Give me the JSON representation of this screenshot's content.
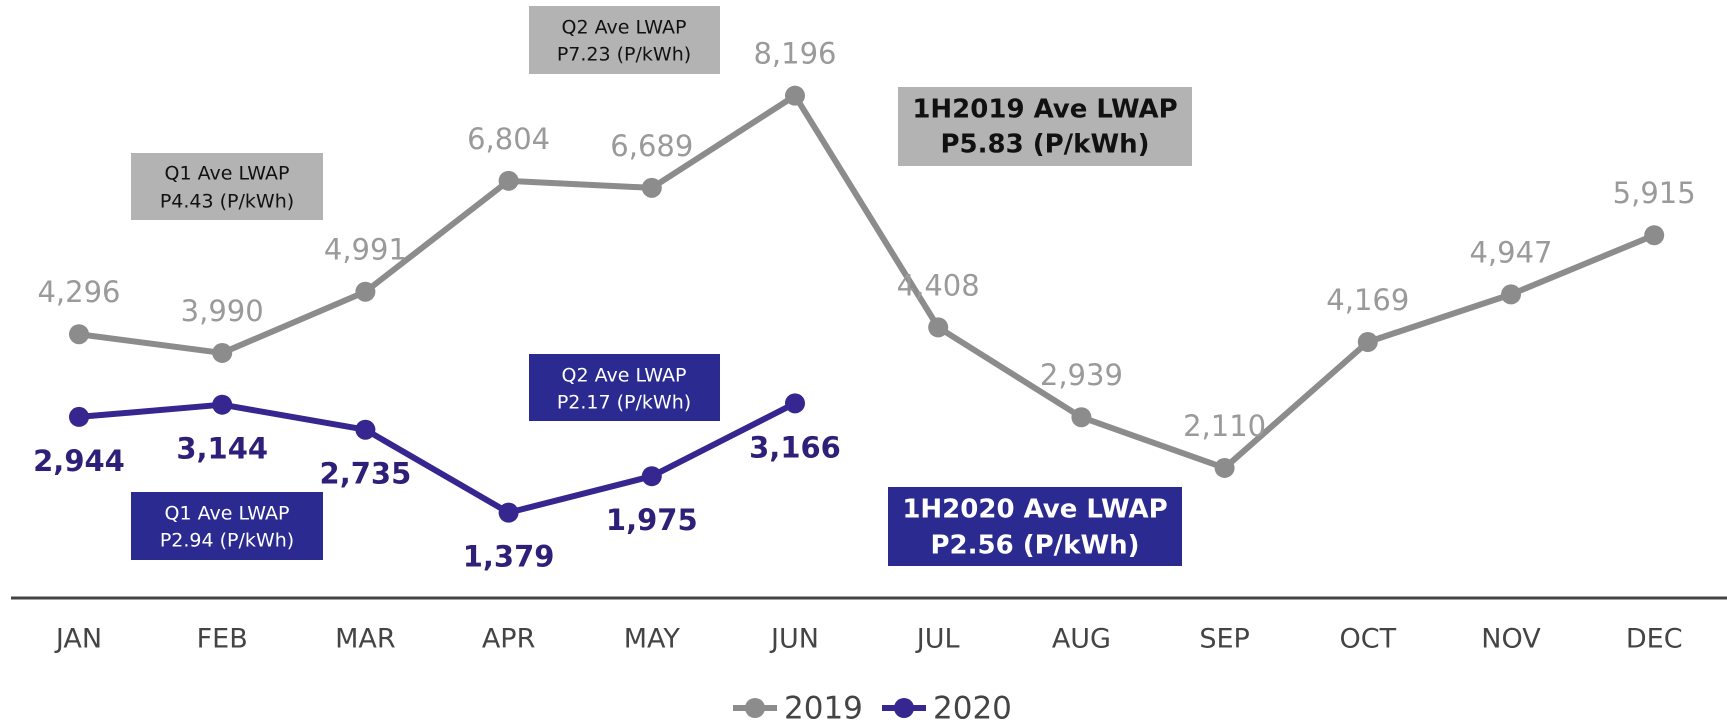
{
  "chart_data": {
    "type": "line",
    "categories": [
      "JAN",
      "FEB",
      "MAR",
      "APR",
      "MAY",
      "JUN",
      "JUL",
      "AUG",
      "SEP",
      "OCT",
      "NOV",
      "DEC"
    ],
    "ylim": [
      0,
      9000
    ],
    "series": [
      {
        "name": "2019",
        "color": "#8c8c8c",
        "label_color": "#9a9a9a",
        "values": [
          4296,
          3990,
          4991,
          6804,
          6689,
          8196,
          4408,
          2939,
          2110,
          4169,
          4947,
          5915
        ],
        "value_labels": [
          "4,296",
          "3,990",
          "4,991",
          "6,804",
          "6,689",
          "8,196",
          "4,408",
          "2,939",
          "2,110",
          "4,169",
          "4,947",
          "5,915"
        ]
      },
      {
        "name": "2020",
        "color": "#36268f",
        "label_color": "#2e1f78",
        "values": [
          2944,
          3144,
          2735,
          1379,
          1975,
          3166,
          null,
          null,
          null,
          null,
          null,
          null
        ],
        "value_labels": [
          "2,944",
          "3,144",
          "2,735",
          "1,379",
          "1,975",
          "3,166",
          null,
          null,
          null,
          null,
          null,
          null
        ]
      }
    ],
    "annotations": [
      {
        "lines": [
          "Q1 Ave LWAP",
          "P4.43 (P/kWh)"
        ]
      },
      {
        "lines": [
          "Q2 Ave LWAP",
          "P7.23 (P/kWh)"
        ]
      },
      {
        "lines": [
          "1H2019 Ave LWAP",
          "P5.83 (P/kWh)"
        ]
      },
      {
        "lines": [
          "Q1 Ave LWAP",
          "P2.94 (P/kWh)"
        ]
      },
      {
        "lines": [
          "Q2 Ave LWAP",
          "P2.17 (P/kWh)"
        ]
      },
      {
        "lines": [
          "1H2020 Ave LWAP",
          "P2.56 (P/kWh)"
        ]
      }
    ],
    "legend": "bottom"
  }
}
